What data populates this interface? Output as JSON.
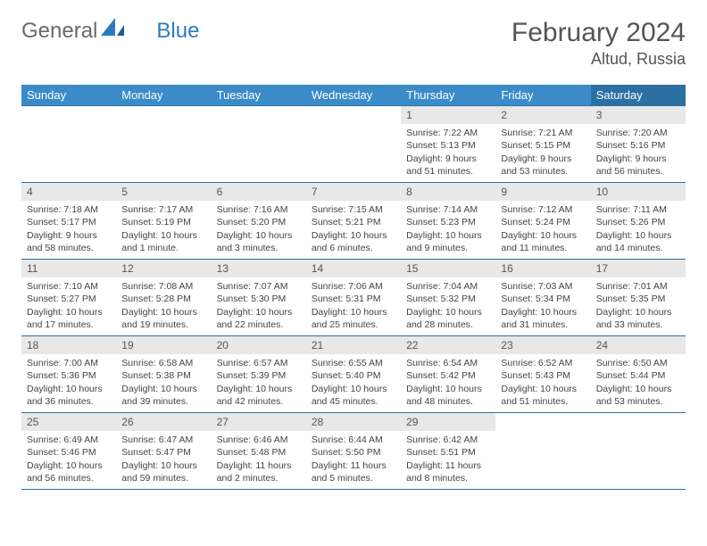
{
  "brand": {
    "part1": "General",
    "part2": "Blue"
  },
  "title": "February 2024",
  "location": "Altud, Russia",
  "colors": {
    "header_bg": "#3b8bc9",
    "header_sat_bg": "#2b6fa3",
    "border": "#2b6fa3",
    "daynum_bg": "#e8e8e8",
    "text": "#444444",
    "brand_gray": "#6a6a6a",
    "brand_blue": "#2b7cc0"
  },
  "weekdays": [
    "Sunday",
    "Monday",
    "Tuesday",
    "Wednesday",
    "Thursday",
    "Friday",
    "Saturday"
  ],
  "weeks": [
    [
      null,
      null,
      null,
      null,
      {
        "n": "1",
        "sr": "7:22 AM",
        "ss": "5:13 PM",
        "dl": "9 hours and 51 minutes."
      },
      {
        "n": "2",
        "sr": "7:21 AM",
        "ss": "5:15 PM",
        "dl": "9 hours and 53 minutes."
      },
      {
        "n": "3",
        "sr": "7:20 AM",
        "ss": "5:16 PM",
        "dl": "9 hours and 56 minutes."
      }
    ],
    [
      {
        "n": "4",
        "sr": "7:18 AM",
        "ss": "5:17 PM",
        "dl": "9 hours and 58 minutes."
      },
      {
        "n": "5",
        "sr": "7:17 AM",
        "ss": "5:19 PM",
        "dl": "10 hours and 1 minute."
      },
      {
        "n": "6",
        "sr": "7:16 AM",
        "ss": "5:20 PM",
        "dl": "10 hours and 3 minutes."
      },
      {
        "n": "7",
        "sr": "7:15 AM",
        "ss": "5:21 PM",
        "dl": "10 hours and 6 minutes."
      },
      {
        "n": "8",
        "sr": "7:14 AM",
        "ss": "5:23 PM",
        "dl": "10 hours and 9 minutes."
      },
      {
        "n": "9",
        "sr": "7:12 AM",
        "ss": "5:24 PM",
        "dl": "10 hours and 11 minutes."
      },
      {
        "n": "10",
        "sr": "7:11 AM",
        "ss": "5:26 PM",
        "dl": "10 hours and 14 minutes."
      }
    ],
    [
      {
        "n": "11",
        "sr": "7:10 AM",
        "ss": "5:27 PM",
        "dl": "10 hours and 17 minutes."
      },
      {
        "n": "12",
        "sr": "7:08 AM",
        "ss": "5:28 PM",
        "dl": "10 hours and 19 minutes."
      },
      {
        "n": "13",
        "sr": "7:07 AM",
        "ss": "5:30 PM",
        "dl": "10 hours and 22 minutes."
      },
      {
        "n": "14",
        "sr": "7:06 AM",
        "ss": "5:31 PM",
        "dl": "10 hours and 25 minutes."
      },
      {
        "n": "15",
        "sr": "7:04 AM",
        "ss": "5:32 PM",
        "dl": "10 hours and 28 minutes."
      },
      {
        "n": "16",
        "sr": "7:03 AM",
        "ss": "5:34 PM",
        "dl": "10 hours and 31 minutes."
      },
      {
        "n": "17",
        "sr": "7:01 AM",
        "ss": "5:35 PM",
        "dl": "10 hours and 33 minutes."
      }
    ],
    [
      {
        "n": "18",
        "sr": "7:00 AM",
        "ss": "5:36 PM",
        "dl": "10 hours and 36 minutes."
      },
      {
        "n": "19",
        "sr": "6:58 AM",
        "ss": "5:38 PM",
        "dl": "10 hours and 39 minutes."
      },
      {
        "n": "20",
        "sr": "6:57 AM",
        "ss": "5:39 PM",
        "dl": "10 hours and 42 minutes."
      },
      {
        "n": "21",
        "sr": "6:55 AM",
        "ss": "5:40 PM",
        "dl": "10 hours and 45 minutes."
      },
      {
        "n": "22",
        "sr": "6:54 AM",
        "ss": "5:42 PM",
        "dl": "10 hours and 48 minutes."
      },
      {
        "n": "23",
        "sr": "6:52 AM",
        "ss": "5:43 PM",
        "dl": "10 hours and 51 minutes."
      },
      {
        "n": "24",
        "sr": "6:50 AM",
        "ss": "5:44 PM",
        "dl": "10 hours and 53 minutes."
      }
    ],
    [
      {
        "n": "25",
        "sr": "6:49 AM",
        "ss": "5:46 PM",
        "dl": "10 hours and 56 minutes."
      },
      {
        "n": "26",
        "sr": "6:47 AM",
        "ss": "5:47 PM",
        "dl": "10 hours and 59 minutes."
      },
      {
        "n": "27",
        "sr": "6:46 AM",
        "ss": "5:48 PM",
        "dl": "11 hours and 2 minutes."
      },
      {
        "n": "28",
        "sr": "6:44 AM",
        "ss": "5:50 PM",
        "dl": "11 hours and 5 minutes."
      },
      {
        "n": "29",
        "sr": "6:42 AM",
        "ss": "5:51 PM",
        "dl": "11 hours and 8 minutes."
      },
      null,
      null
    ]
  ],
  "labels": {
    "sunrise": "Sunrise: ",
    "sunset": "Sunset: ",
    "daylight": "Daylight: "
  }
}
